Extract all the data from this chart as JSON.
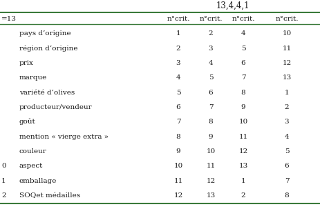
{
  "title_top": "13,4,4,1",
  "header_left": "=13",
  "col_headers": [
    "n°crit.",
    "n°crit.",
    "n°crit.",
    "n°crit."
  ],
  "left_col_numbers": [
    "",
    "",
    "",
    "",
    "",
    "",
    "",
    "",
    "",
    "0",
    "1",
    "2"
  ],
  "criteria": [
    "pays d’origine",
    "région d’origine",
    "prix",
    "marque",
    "variété d’olives",
    "producteur/vendeur",
    "goût",
    "mention « vierge extra »",
    "couleur",
    "aspect",
    "emballage",
    "SOQet médailles"
  ],
  "data": [
    [
      1,
      2,
      4,
      10
    ],
    [
      2,
      3,
      5,
      11
    ],
    [
      3,
      4,
      6,
      12
    ],
    [
      4,
      5,
      7,
      13
    ],
    [
      5,
      6,
      8,
      1
    ],
    [
      6,
      7,
      9,
      2
    ],
    [
      7,
      8,
      10,
      3
    ],
    [
      8,
      9,
      11,
      4
    ],
    [
      9,
      10,
      12,
      5
    ],
    [
      10,
      11,
      13,
      6
    ],
    [
      11,
      12,
      1,
      7
    ],
    [
      12,
      13,
      2,
      8
    ]
  ],
  "bg_color": "#ffffff",
  "border_color": "#3a7a3a",
  "text_color": "#1a1a1a",
  "font_size": 7.5,
  "title_font_size": 8.5
}
